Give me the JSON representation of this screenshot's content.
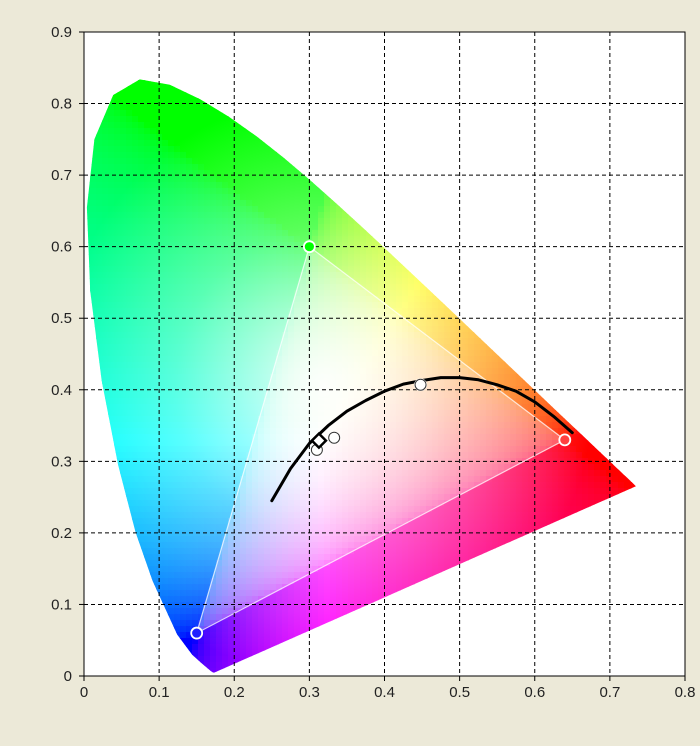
{
  "chart_data": {
    "type": "scatter",
    "title": "",
    "xlabel": "",
    "ylabel": "",
    "xlim": [
      0,
      0.8
    ],
    "ylim": [
      0,
      0.9
    ],
    "x_ticks": [
      "0",
      "0.1",
      "0.2",
      "0.3",
      "0.4",
      "0.5",
      "0.6",
      "0.7",
      "0.8"
    ],
    "y_ticks": [
      "0",
      "0.1",
      "0.2",
      "0.3",
      "0.4",
      "0.5",
      "0.6",
      "0.7",
      "0.8",
      "0.9"
    ],
    "grid": true,
    "spectral_locus": {
      "x": [
        0.1741,
        0.174,
        0.1738,
        0.1736,
        0.1733,
        0.1726,
        0.1714,
        0.1689,
        0.1644,
        0.1566,
        0.144,
        0.1241,
        0.0913,
        0.0687,
        0.0454,
        0.0235,
        0.0082,
        0.0039,
        0.0139,
        0.0389,
        0.0743,
        0.1142,
        0.1547,
        0.1929,
        0.2296,
        0.2658,
        0.3016,
        0.3373,
        0.3731,
        0.4087,
        0.4441,
        0.4788,
        0.5125,
        0.5448,
        0.5752,
        0.6029,
        0.627,
        0.6482,
        0.6658,
        0.6801,
        0.6915,
        0.7006,
        0.7079,
        0.714,
        0.719,
        0.723,
        0.726,
        0.7283,
        0.73,
        0.7347
      ],
      "y": [
        0.005,
        0.005,
        0.0049,
        0.0049,
        0.0048,
        0.0048,
        0.0051,
        0.0069,
        0.0109,
        0.0177,
        0.0297,
        0.0578,
        0.1327,
        0.2007,
        0.295,
        0.4127,
        0.5384,
        0.6548,
        0.7502,
        0.812,
        0.8338,
        0.8262,
        0.8059,
        0.7816,
        0.7543,
        0.7243,
        0.6923,
        0.6589,
        0.6245,
        0.5896,
        0.5547,
        0.5202,
        0.4866,
        0.4544,
        0.4242,
        0.3965,
        0.3725,
        0.3514,
        0.334,
        0.3197,
        0.3083,
        0.2993,
        0.292,
        0.2859,
        0.2809,
        0.277,
        0.274,
        0.2717,
        0.27,
        0.2653
      ]
    },
    "gamut_triangle": {
      "x": [
        0.64,
        0.3,
        0.15
      ],
      "y": [
        0.33,
        0.6,
        0.06
      ]
    },
    "planckian_locus": {
      "x": [
        0.25,
        0.275,
        0.3,
        0.325,
        0.35,
        0.375,
        0.4,
        0.425,
        0.45,
        0.475,
        0.5,
        0.525,
        0.55,
        0.575,
        0.6,
        0.625,
        0.65
      ],
      "y": [
        0.245,
        0.29,
        0.325,
        0.35,
        0.37,
        0.385,
        0.398,
        0.408,
        0.413,
        0.417,
        0.417,
        0.414,
        0.407,
        0.398,
        0.383,
        0.363,
        0.34
      ]
    },
    "points": [
      {
        "x": 0.64,
        "y": 0.33,
        "color": "#ff4040"
      },
      {
        "x": 0.3,
        "y": 0.6,
        "color": "#00ff00"
      },
      {
        "x": 0.15,
        "y": 0.06,
        "color": "#2020ff"
      },
      {
        "x": 0.448,
        "y": 0.407,
        "color": "#ffffff"
      },
      {
        "x": 0.333,
        "y": 0.333,
        "color": "#ffffff"
      },
      {
        "x": 0.31,
        "y": 0.316,
        "color": "#ffffff"
      }
    ],
    "white_point": {
      "x": 0.3127,
      "y": 0.329,
      "marker": "diamond"
    }
  }
}
